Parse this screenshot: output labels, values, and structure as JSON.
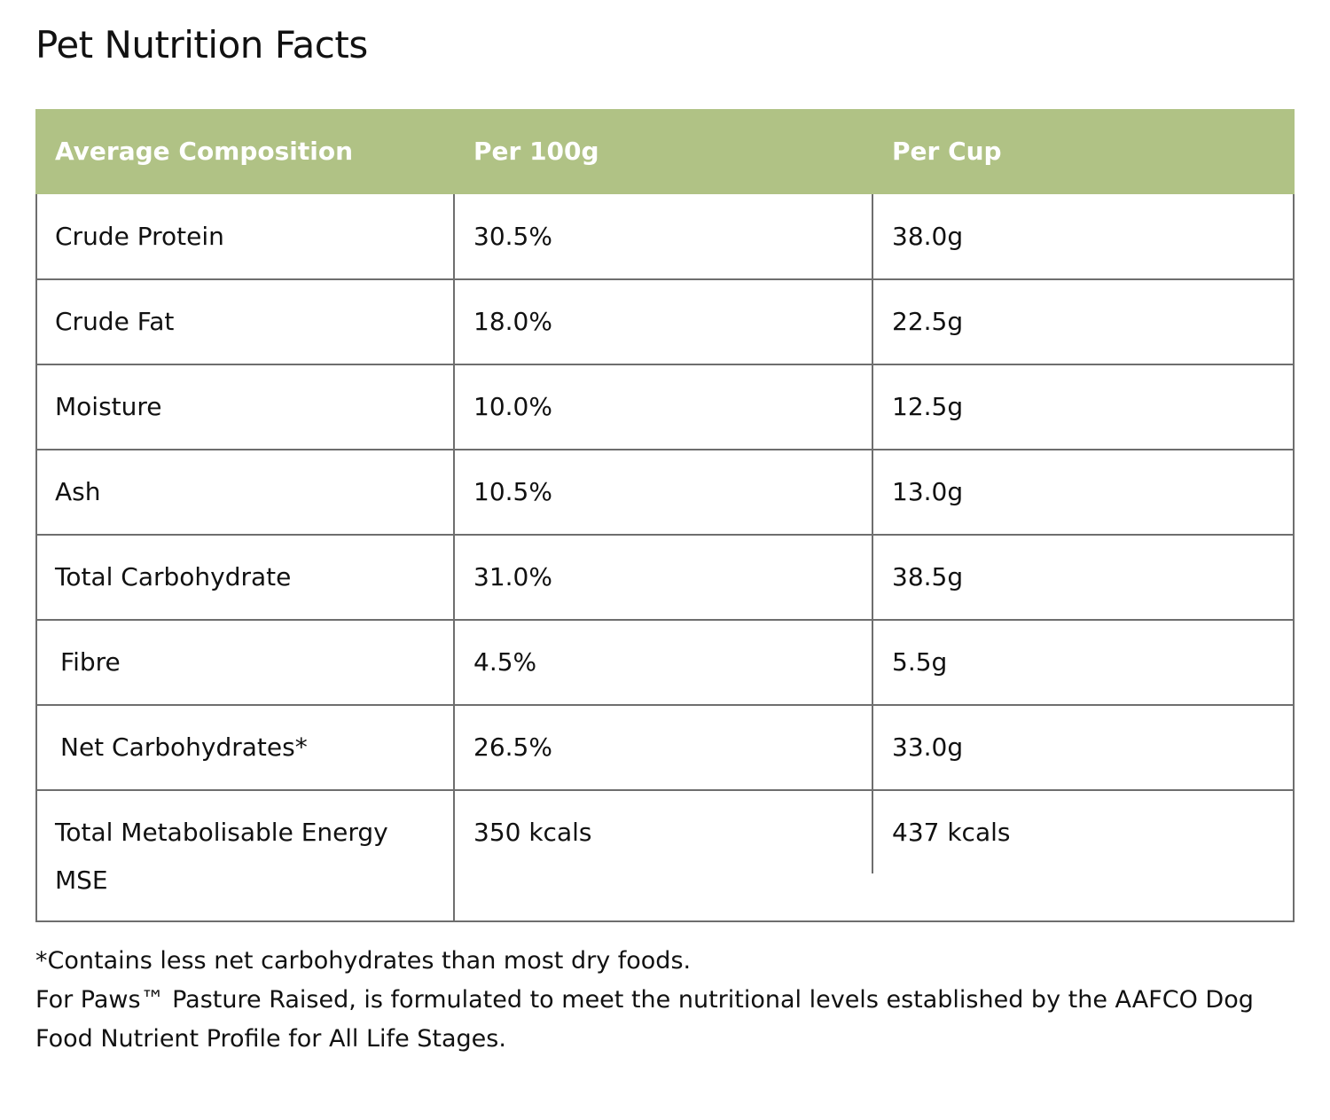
{
  "title": "Pet Nutrition Facts",
  "table": {
    "header": [
      "Average Composition",
      "Per 100g",
      "Per Cup"
    ],
    "rows": [
      [
        "Crude Protein",
        "30.5%",
        "38.0g"
      ],
      [
        "Crude Fat",
        "18.0%",
        "22.5g"
      ],
      [
        "Moisture",
        "10.0%",
        "12.5g"
      ],
      [
        "Ash",
        "10.5%",
        "13.0g"
      ],
      [
        "Total Carbohydrate",
        "31.0%",
        "38.5g"
      ],
      [
        "Fibre",
        "4.5%",
        "5.5g"
      ],
      [
        "Net Carbohydrates*",
        "26.5%",
        "33.0g"
      ],
      [
        "Total Metabolisable Energy MSE",
        "350 kcals",
        "437 kcals"
      ]
    ]
  },
  "footnotes": [
    "*Contains less net carbohydrates than most dry foods.",
    "For Paws™ Pasture Raised, is formulated to meet the nutritional levels established by the AAFCO Dog Food Nutrient Profile for All Life Stages."
  ]
}
